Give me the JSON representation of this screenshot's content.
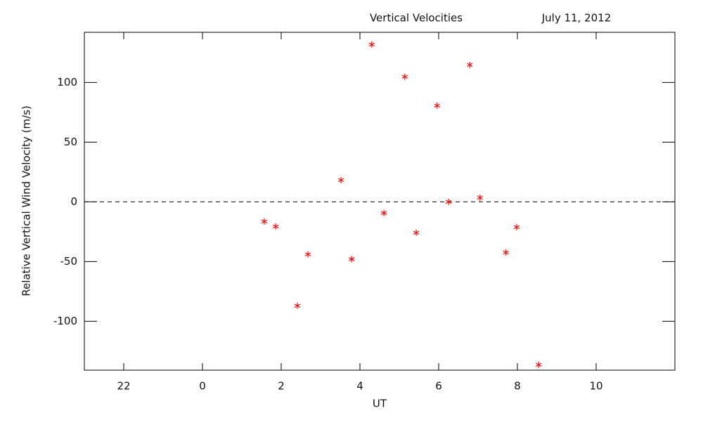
{
  "chart_data": {
    "type": "scatter",
    "title": "Vertical Velocities",
    "subtitle": "July 11, 2012",
    "x_label": "UT",
    "y_label": "Relative Vertical Wind Velocity (m/s)",
    "x": [
      1.57,
      1.86,
      2.41,
      2.68,
      3.52,
      3.79,
      4.3,
      4.61,
      5.14,
      5.43,
      5.96,
      6.25,
      6.79,
      7.05,
      7.71,
      7.98,
      8.54
    ],
    "values": [
      -16.5,
      -20.6,
      -87,
      -44,
      18.2,
      -48,
      131.8,
      -9.4,
      104.7,
      -25.9,
      80.6,
      0,
      114.7,
      3.5,
      -42.4,
      -21.2,
      -136.5
    ],
    "color": "#ff0000",
    "marker": "asterisk",
    "xlim": [
      -3,
      12
    ],
    "xticks": [
      {
        "value": -2,
        "label": "22"
      },
      0,
      2,
      4,
      6,
      8,
      10
    ],
    "ylim": [
      -141,
      142
    ],
    "yticks": [
      -100,
      -50,
      0,
      50,
      100
    ],
    "zero_line": true
  }
}
